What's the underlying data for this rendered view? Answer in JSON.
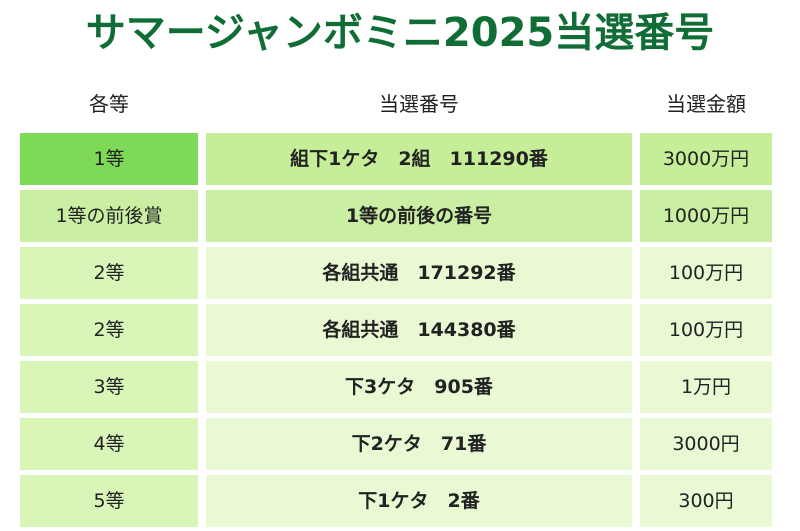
{
  "title": "サマージャンボミニ2025当選番号",
  "headers": {
    "rank": "各等",
    "number": "当選番号",
    "amount": "当選金額"
  },
  "colors": {
    "title": "#0f6d35",
    "row_first_rank": "#7ed957",
    "row_first_body": "#c6ee98",
    "row_second": "#cbefa2",
    "row_other_rank": "#d9f5b8",
    "row_other_body": "#e8f9d4"
  },
  "rows": [
    {
      "rank": "1等",
      "number": "組下1ケタ　2組　111290番",
      "amount": "3000万円"
    },
    {
      "rank": "1等の前後賞",
      "number": "1等の前後の番号",
      "amount": "1000万円"
    },
    {
      "rank": "2等",
      "number": "各組共通　171292番",
      "amount": "100万円"
    },
    {
      "rank": "2等",
      "number": "各組共通　144380番",
      "amount": "100万円"
    },
    {
      "rank": "3等",
      "number": "下3ケタ　905番",
      "amount": "1万円"
    },
    {
      "rank": "4等",
      "number": "下2ケタ　71番",
      "amount": "3000円"
    },
    {
      "rank": "5等",
      "number": "下1ケタ　2番",
      "amount": "300円"
    }
  ]
}
